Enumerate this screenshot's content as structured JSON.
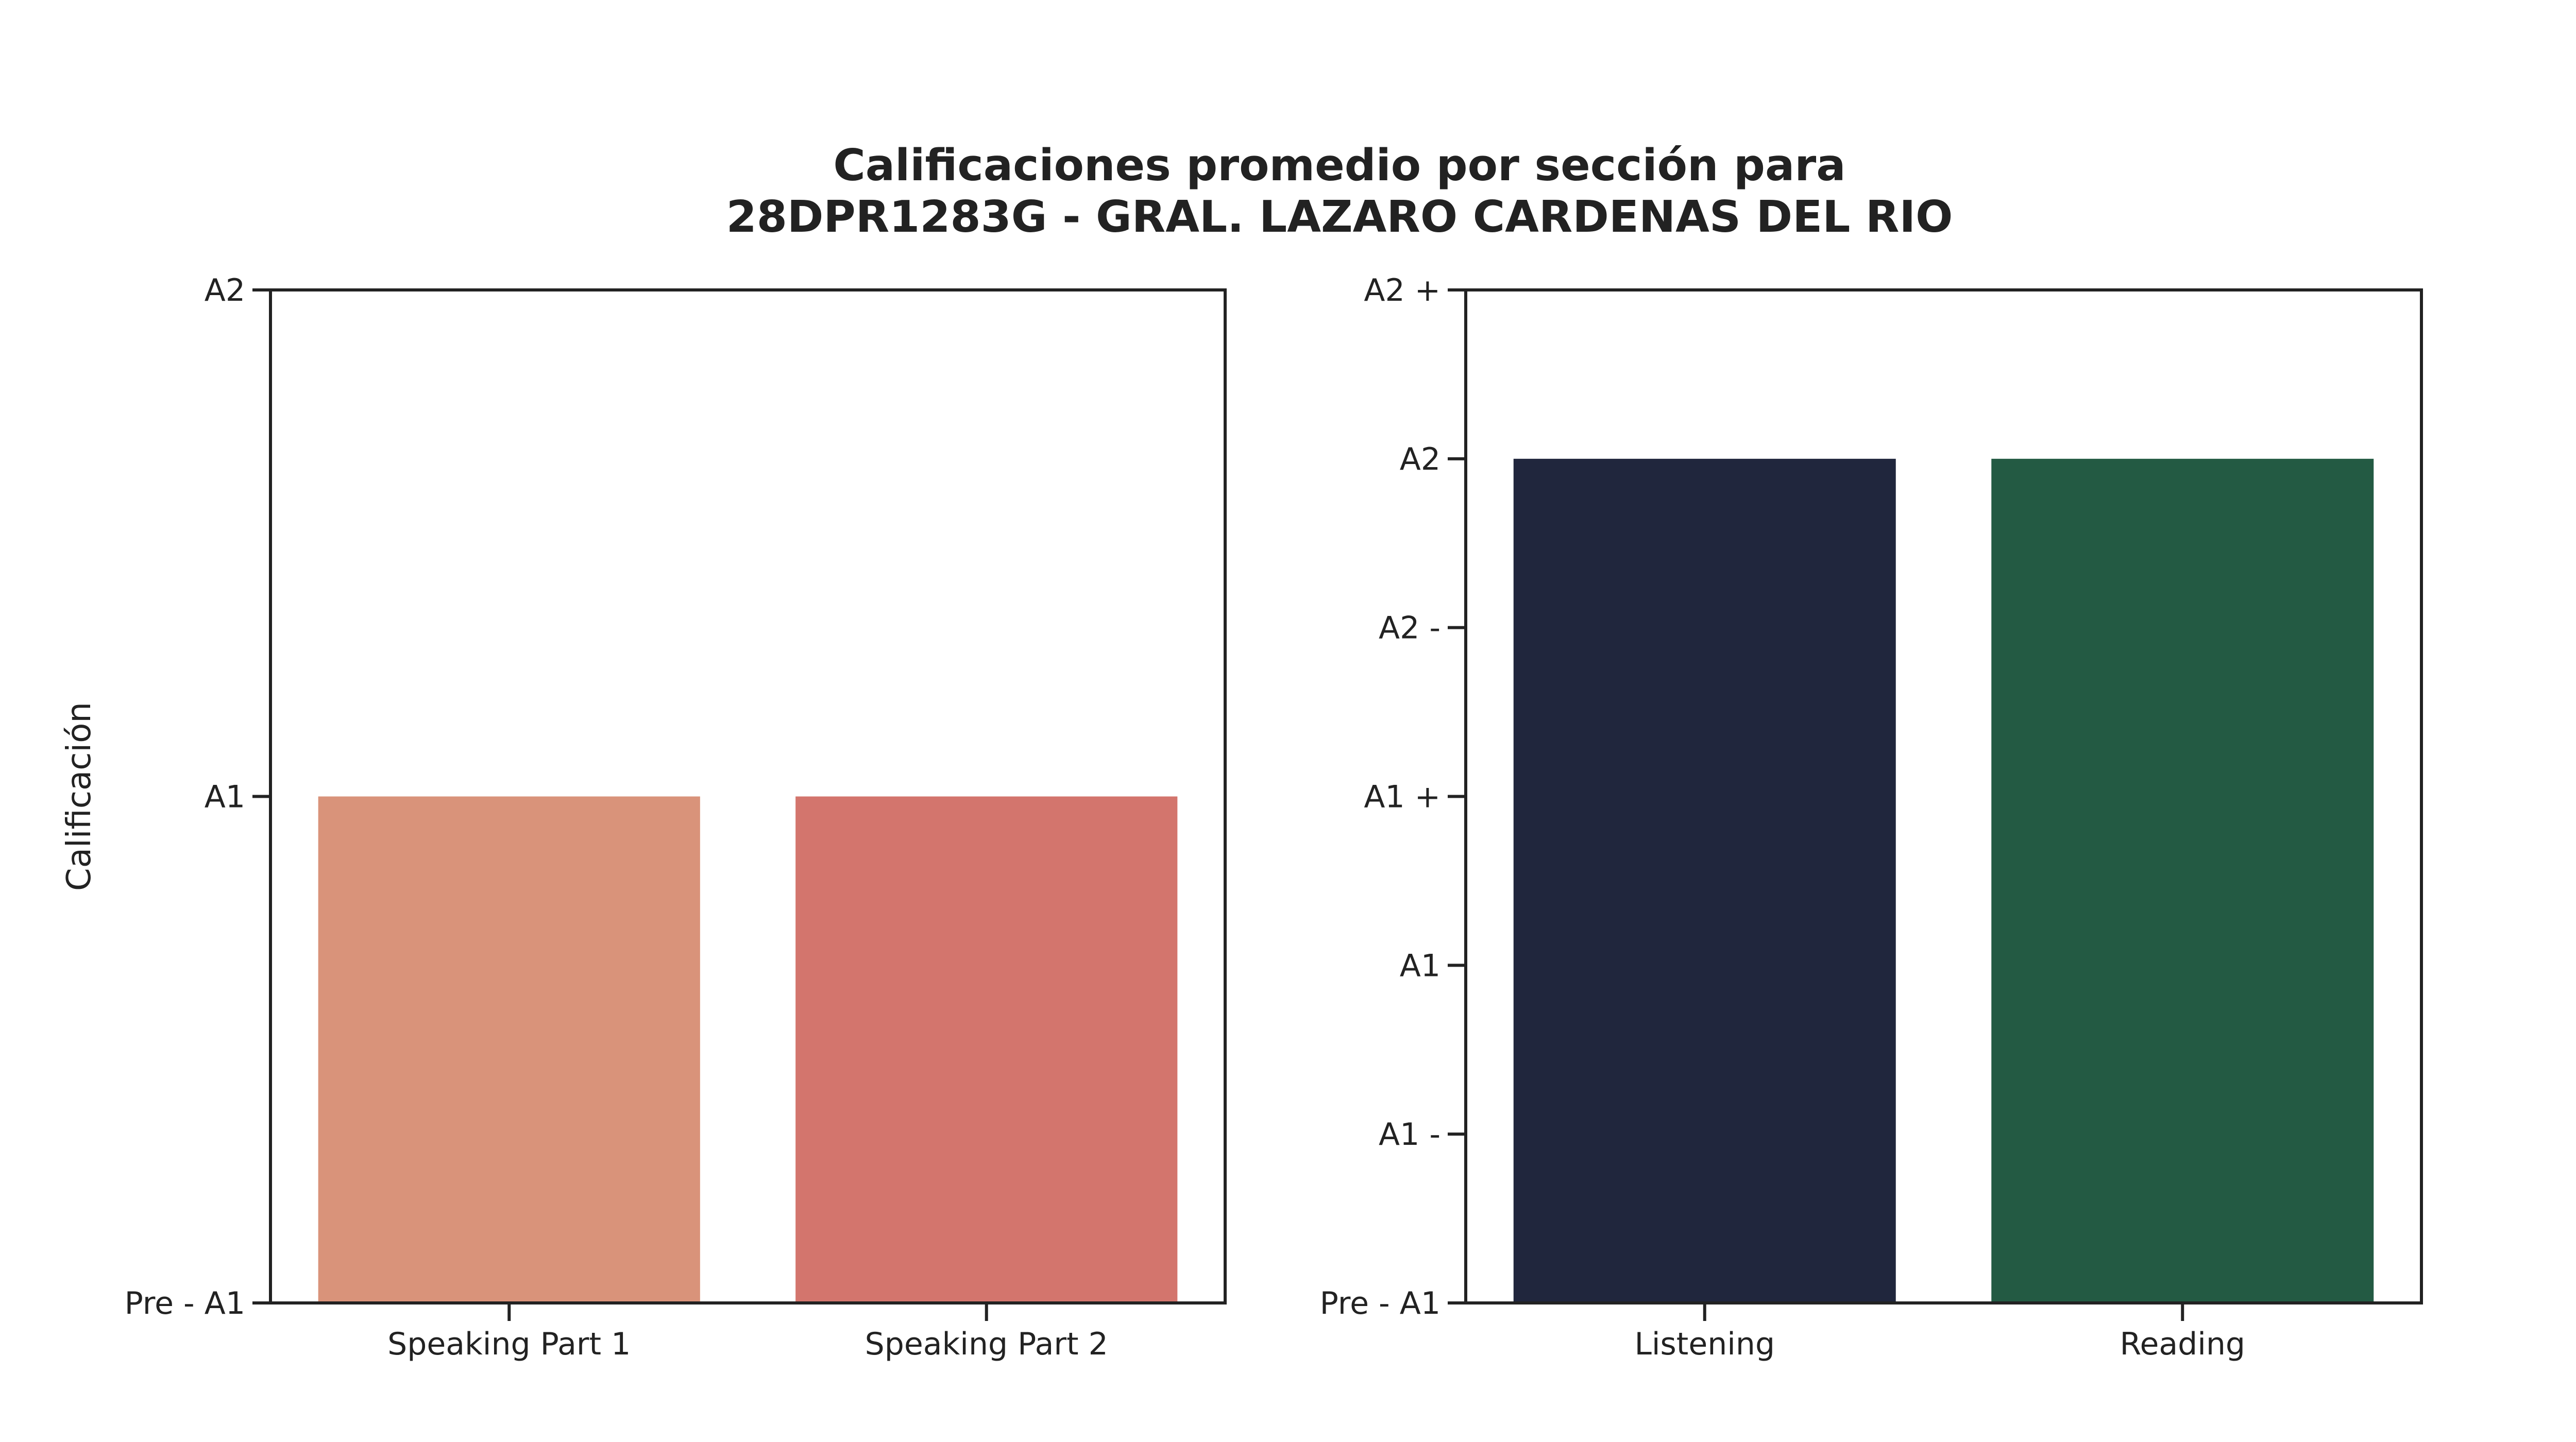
{
  "title_lines": [
    "Calificaciones promedio por sección para",
    "28DPR1283G - GRAL. LAZARO CARDENAS DEL RIO"
  ],
  "chart_data": [
    {
      "type": "bar",
      "ylabel": "Calificación",
      "xlabel": "",
      "categories": [
        "Speaking Part 1",
        "Speaking Part 2"
      ],
      "values": [
        1,
        1
      ],
      "colors": [
        "#d9937a",
        "#d3756d"
      ],
      "ylim": [
        0,
        2
      ],
      "yticks": [
        {
          "value": 0,
          "label": "Pre - A1"
        },
        {
          "value": 1,
          "label": "A1"
        },
        {
          "value": 2,
          "label": "A2"
        }
      ],
      "value_labels": [
        "A1",
        "A1"
      ],
      "grid": false
    },
    {
      "type": "bar",
      "ylabel": "",
      "xlabel": "",
      "categories": [
        "Listening",
        "Reading"
      ],
      "values": [
        5,
        5
      ],
      "colors": [
        "#20263d",
        "#235a43"
      ],
      "ylim": [
        0,
        6
      ],
      "yticks": [
        {
          "value": 0,
          "label": "Pre - A1"
        },
        {
          "value": 1,
          "label": "A1 -"
        },
        {
          "value": 2,
          "label": "A1"
        },
        {
          "value": 3,
          "label": "A1 +"
        },
        {
          "value": 4,
          "label": "A2 -"
        },
        {
          "value": 5,
          "label": "A2"
        },
        {
          "value": 6,
          "label": "A2 +"
        }
      ],
      "value_labels": [
        "A2",
        "A2"
      ],
      "grid": false
    }
  ]
}
